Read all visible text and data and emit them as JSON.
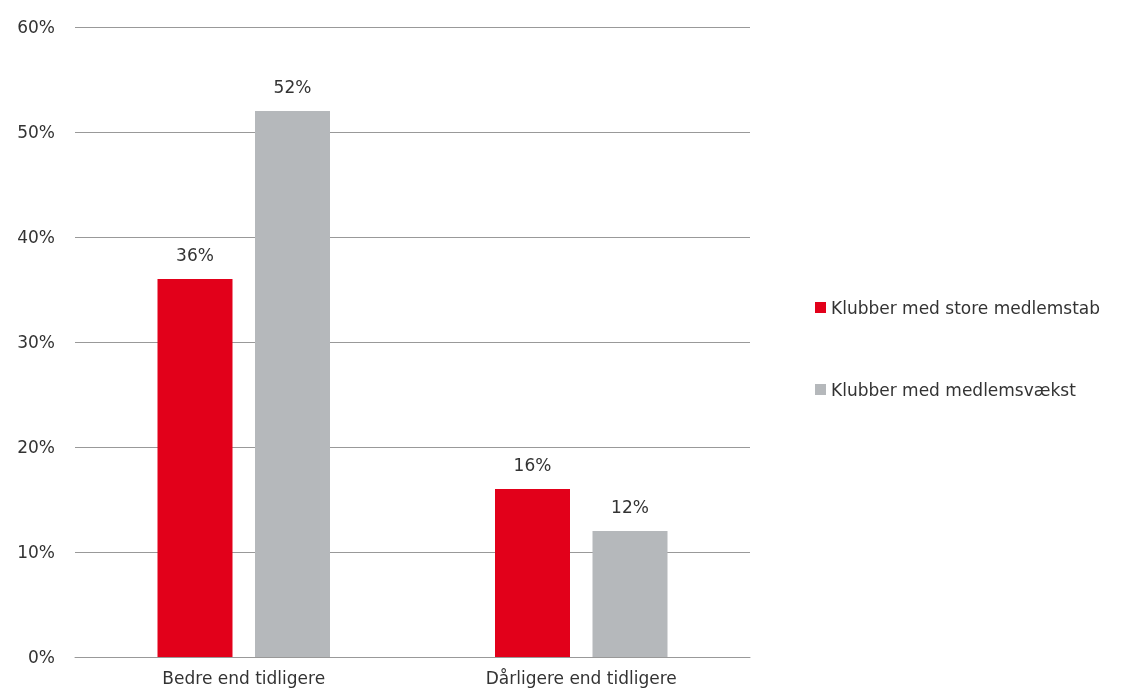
{
  "chart_data": {
    "type": "bar",
    "categories": [
      "Bedre end tidligere",
      "Dårligere end tidligere"
    ],
    "series": [
      {
        "name": "Klubber med store medlemstab",
        "color": "#e2001a",
        "values": [
          36,
          16
        ],
        "value_labels": [
          "36%",
          "16%"
        ]
      },
      {
        "name": "Klubber med medlemsvækst",
        "color": "#b5b8bb",
        "values": [
          52,
          12
        ],
        "value_labels": [
          "52%",
          "12%"
        ]
      }
    ],
    "ylim": [
      0,
      60
    ],
    "yticks": [
      {
        "value": 0,
        "label": "0%"
      },
      {
        "value": 10,
        "label": "10%"
      },
      {
        "value": 20,
        "label": "20%"
      },
      {
        "value": 30,
        "label": "30%"
      },
      {
        "value": 40,
        "label": "40%"
      },
      {
        "value": 50,
        "label": "50%"
      },
      {
        "value": 60,
        "label": "60%"
      }
    ],
    "grid": "y",
    "legend": "right"
  }
}
